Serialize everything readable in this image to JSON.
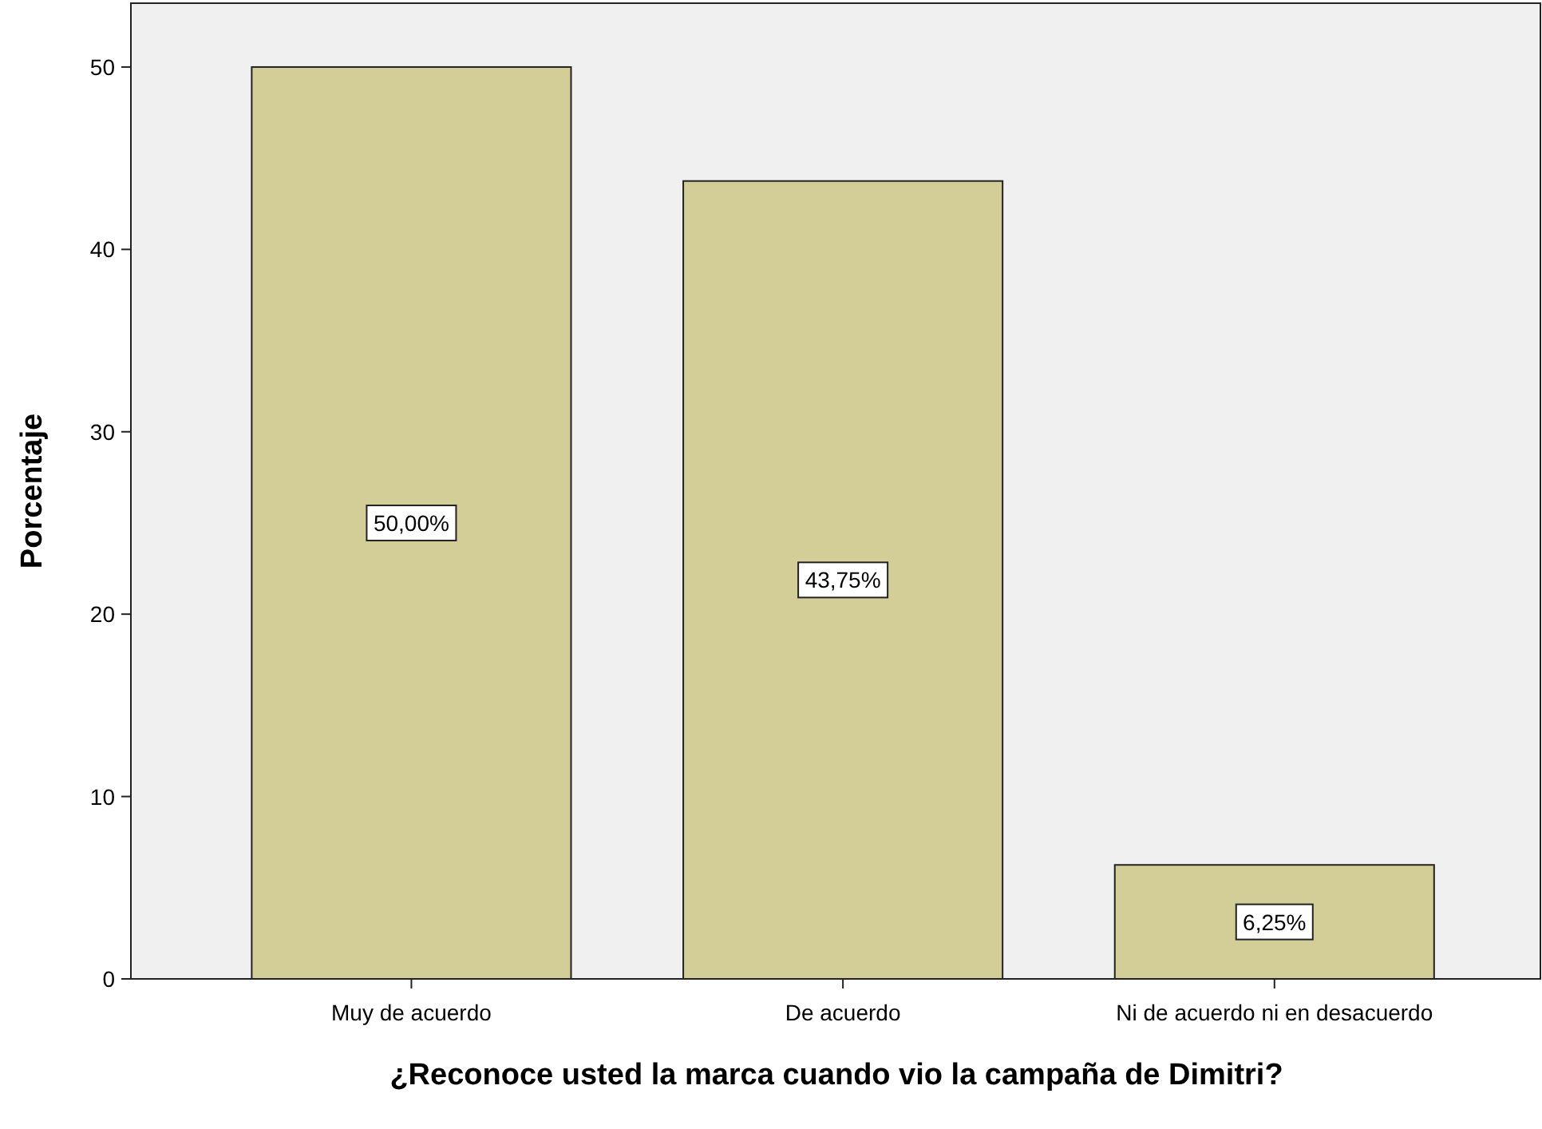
{
  "chart_data": {
    "type": "bar",
    "xlabel": "¿Reconoce usted la marca cuando vio la campaña de Dimitri?",
    "ylabel": "Porcentaje",
    "categories": [
      "Muy de acuerdo",
      "De acuerdo",
      "Ni de acuerdo ni en desacuerdo"
    ],
    "values": [
      50,
      43.75,
      6.25
    ],
    "value_labels": [
      "50,00%",
      "43,75%",
      "6,25%"
    ],
    "color": "#d3ce97",
    "ylim": [
      0,
      53.5
    ],
    "yticks": [
      0,
      10,
      20,
      30,
      40,
      50
    ],
    "grid": false
  }
}
